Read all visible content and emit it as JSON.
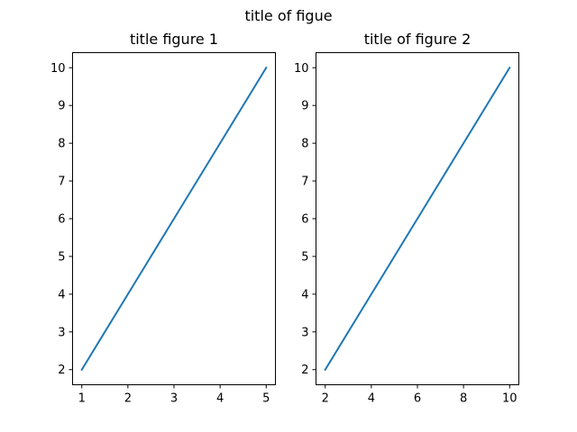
{
  "figure": {
    "suptitle": "title of figue"
  },
  "chart_data": [
    {
      "type": "line",
      "title": "title figure 1",
      "xlabel": "",
      "ylabel": "",
      "xlim": [
        0.8,
        5.2
      ],
      "ylim": [
        1.6,
        10.4
      ],
      "xticks": [
        1,
        2,
        3,
        4,
        5
      ],
      "yticks": [
        2,
        3,
        4,
        5,
        6,
        7,
        8,
        9,
        10
      ],
      "grid": false,
      "series": [
        {
          "x": [
            1,
            2,
            3,
            4,
            5
          ],
          "values": [
            2,
            4,
            6,
            8,
            10
          ],
          "color": "#1f77b4"
        }
      ]
    },
    {
      "type": "line",
      "title": "title of figure 2",
      "xlabel": "",
      "ylabel": "",
      "xlim": [
        1.6,
        10.4
      ],
      "ylim": [
        1.6,
        10.4
      ],
      "xticks": [
        2,
        4,
        6,
        8,
        10
      ],
      "yticks": [
        2,
        3,
        4,
        5,
        6,
        7,
        8,
        9,
        10
      ],
      "grid": false,
      "series": [
        {
          "x": [
            2,
            4,
            6,
            8,
            10
          ],
          "values": [
            2,
            4,
            6,
            8,
            10
          ],
          "color": "#1f77b4"
        }
      ]
    }
  ]
}
